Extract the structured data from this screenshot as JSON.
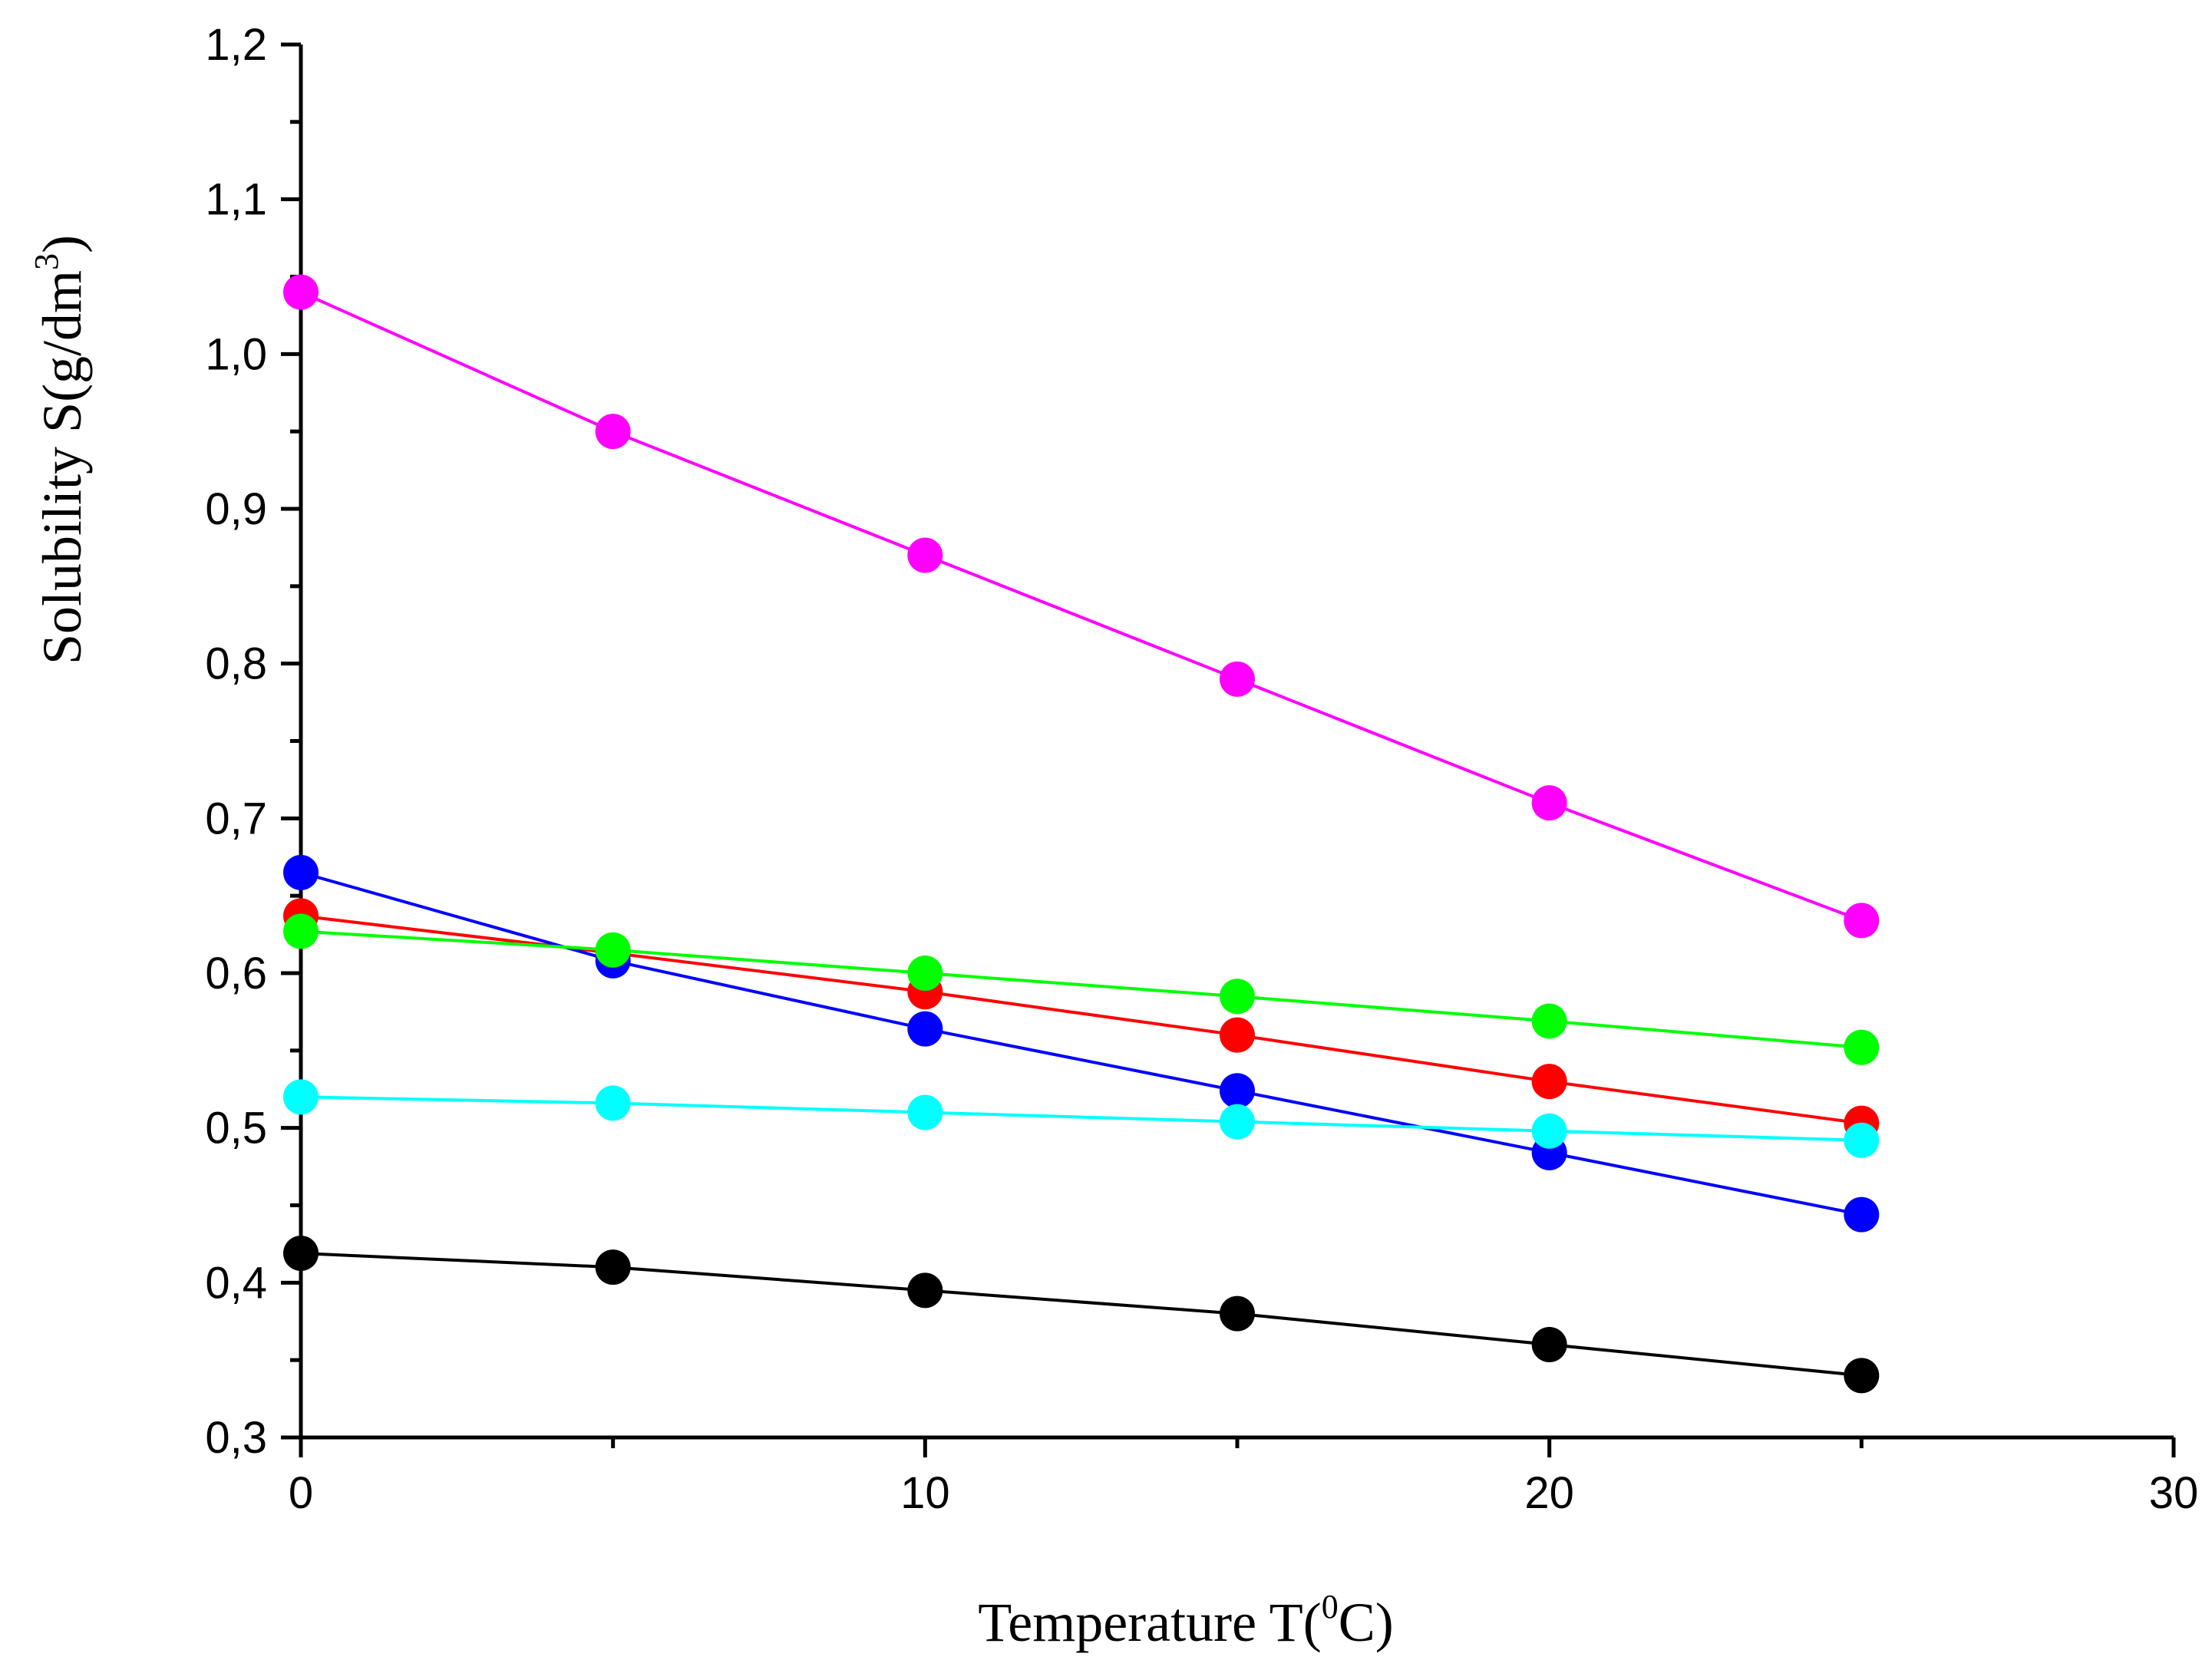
{
  "chart_data": {
    "type": "line",
    "title": "",
    "xlabel": {
      "prefix": "Temperature T(",
      "sup": "0",
      "suffix": "C)"
    },
    "ylabel": {
      "prefix": "Solubility S(g/dm",
      "sup": "3",
      "suffix": ")"
    },
    "xlim": [
      0,
      30
    ],
    "ylim": [
      0.3,
      1.2
    ],
    "x_ticks": [
      0,
      10,
      20,
      30
    ],
    "x_tick_labels": [
      "0",
      "10",
      "20",
      "30"
    ],
    "x_minor_ticks": [
      5,
      15,
      25
    ],
    "y_ticks": [
      0.3,
      0.4,
      0.5,
      0.6,
      0.7,
      0.8,
      0.9,
      1.0,
      1.1,
      1.2
    ],
    "y_tick_labels": [
      "0,3",
      "0,4",
      "0,5",
      "0,6",
      "0,7",
      "0,8",
      "0,9",
      "1,0",
      "1,1",
      "1,2"
    ],
    "y_minor_ticks": [
      0.35,
      0.45,
      0.55,
      0.65,
      0.75,
      0.85,
      0.95,
      1.05,
      1.15
    ],
    "x": [
      0,
      5,
      10,
      15,
      20,
      25
    ],
    "grid": false,
    "legend": "none",
    "series": [
      {
        "name": "magenta-series",
        "color": "#ff00ff",
        "values": [
          1.04,
          0.95,
          0.87,
          0.79,
          0.71,
          0.634
        ]
      },
      {
        "name": "red-series",
        "color": "#ff0000",
        "values": [
          0.637,
          0.613,
          0.588,
          0.56,
          0.53,
          0.503
        ]
      },
      {
        "name": "blue-series",
        "color": "#0000ff",
        "values": [
          0.665,
          0.608,
          0.564,
          0.524,
          0.484,
          0.444
        ]
      },
      {
        "name": "cyan-series",
        "color": "#00ffff",
        "values": [
          0.52,
          0.516,
          0.51,
          0.504,
          0.498,
          0.492
        ]
      },
      {
        "name": "green-series",
        "color": "#00ff00",
        "values": [
          0.627,
          0.615,
          0.6,
          0.585,
          0.569,
          0.552
        ]
      },
      {
        "name": "black-series",
        "color": "#000000",
        "values": [
          0.419,
          0.41,
          0.395,
          0.38,
          0.36,
          0.34
        ]
      }
    ]
  }
}
